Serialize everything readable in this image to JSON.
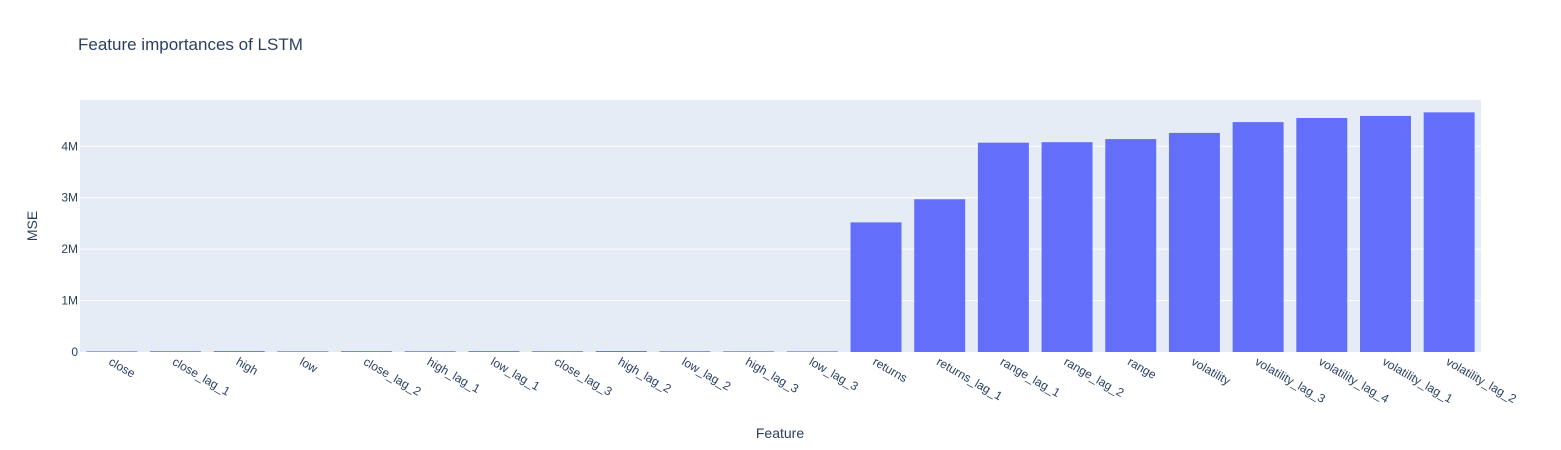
{
  "chart_data": {
    "type": "bar",
    "title": "Feature importances of LSTM",
    "xlabel": "Feature",
    "ylabel": "MSE",
    "categories": [
      "close",
      "close_lag_1",
      "high",
      "low",
      "close_lag_2",
      "high_lag_1",
      "low_lag_1",
      "close_lag_3",
      "high_lag_2",
      "low_lag_2",
      "high_lag_3",
      "low_lag_3",
      "returns",
      "returns_lag_1",
      "range_lag_1",
      "range_lag_2",
      "range",
      "volatility",
      "volatility_lag_3",
      "volatility_lag_4",
      "volatility_lag_1",
      "volatility_lag_2"
    ],
    "values": [
      12000,
      15000,
      18000,
      13000,
      16000,
      14000,
      17000,
      15000,
      19000,
      14000,
      13000,
      12000,
      2520000,
      2970000,
      4070000,
      4080000,
      4140000,
      4260000,
      4470000,
      4550000,
      4590000,
      4660000
    ],
    "ylim": [
      0,
      4900000
    ],
    "yticks": [
      0,
      1000000,
      2000000,
      3000000,
      4000000
    ],
    "ytick_labels": [
      "0",
      "1M",
      "2M",
      "3M",
      "4M"
    ],
    "grid": true,
    "colors": {
      "bar": "#636efa",
      "plot_bg": "#e5ecf6",
      "grid": "#ffffff",
      "text": "#2a3f5f"
    }
  }
}
